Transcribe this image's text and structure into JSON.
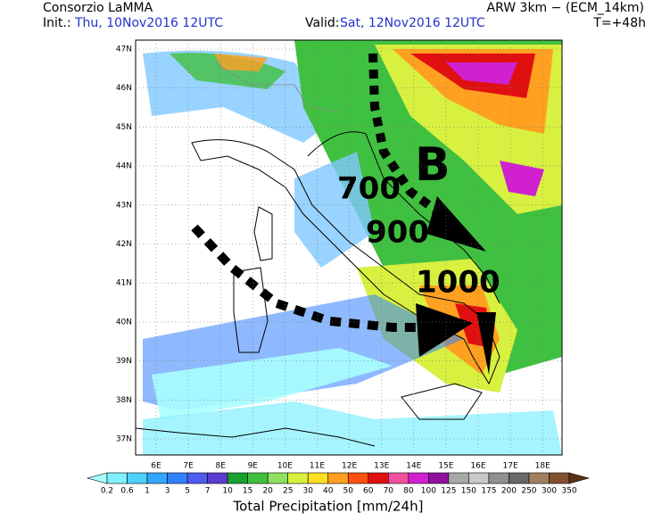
{
  "header": {
    "org": "Consorzio LaMMA",
    "model": "ARW 3km − (ECM_14km)",
    "init_label": "Init.:",
    "init": "Thu, 10Nov2016 12UTC",
    "valid_label": "Valid:",
    "valid": "Sat, 12Nov2016 12UTC",
    "lead": "T=+48h"
  },
  "map": {
    "lat_labels": [
      "47N",
      "46N",
      "45N",
      "44N",
      "43N",
      "42N",
      "41N",
      "40N",
      "39N",
      "38N",
      "37N"
    ],
    "lon_labels": [
      "6E",
      "7E",
      "8E",
      "9E",
      "10E",
      "11E",
      "12E",
      "13E",
      "14E",
      "15E",
      "16E",
      "17E",
      "18E"
    ],
    "annotations": [
      "B",
      "700",
      "900",
      "1000"
    ]
  },
  "colorbar": {
    "labels": [
      0.2,
      0.6,
      1,
      3,
      5,
      7,
      10,
      15,
      20,
      25,
      30,
      40,
      50,
      60,
      70,
      80,
      100,
      125,
      150,
      175,
      200,
      250,
      300,
      350
    ],
    "colors": [
      "#a8ffff",
      "#80f0ff",
      "#50d0ff",
      "#30a8ff",
      "#3380ff",
      "#4d5cf0",
      "#5a3cd0",
      "#18a030",
      "#40c040",
      "#90e060",
      "#d8f040",
      "#ffe020",
      "#ffa020",
      "#ff5010",
      "#e01010",
      "#f050a0",
      "#d020d0",
      "#9010a0",
      "#a8a8a8",
      "#c8c8c8",
      "#909090",
      "#686868",
      "#a08060",
      "#805030",
      "#5a3010"
    ],
    "title": "Total Precipitation [mm/24h]"
  }
}
